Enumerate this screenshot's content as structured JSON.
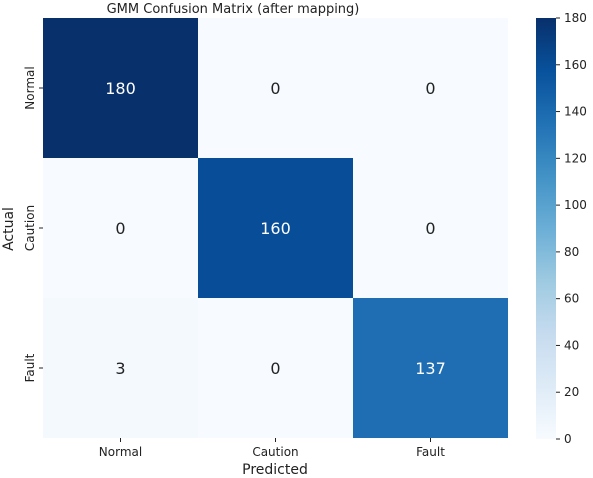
{
  "chart_data": {
    "type": "heatmap",
    "title": "GMM Confusion Matrix (after mapping)",
    "xlabel": "Predicted",
    "ylabel": "Actual",
    "x_categories": [
      "Normal",
      "Caution",
      "Fault"
    ],
    "y_categories": [
      "Normal",
      "Caution",
      "Fault"
    ],
    "values": [
      [
        180,
        0,
        0
      ],
      [
        0,
        160,
        0
      ],
      [
        3,
        0,
        137
      ]
    ],
    "colormap": "Blues",
    "vmin": 0,
    "vmax": 180,
    "colorbar_ticks": [
      0,
      20,
      40,
      60,
      80,
      100,
      120,
      140,
      160,
      180
    ],
    "annotations": true,
    "grid": false,
    "legend": "colorbar-right"
  }
}
